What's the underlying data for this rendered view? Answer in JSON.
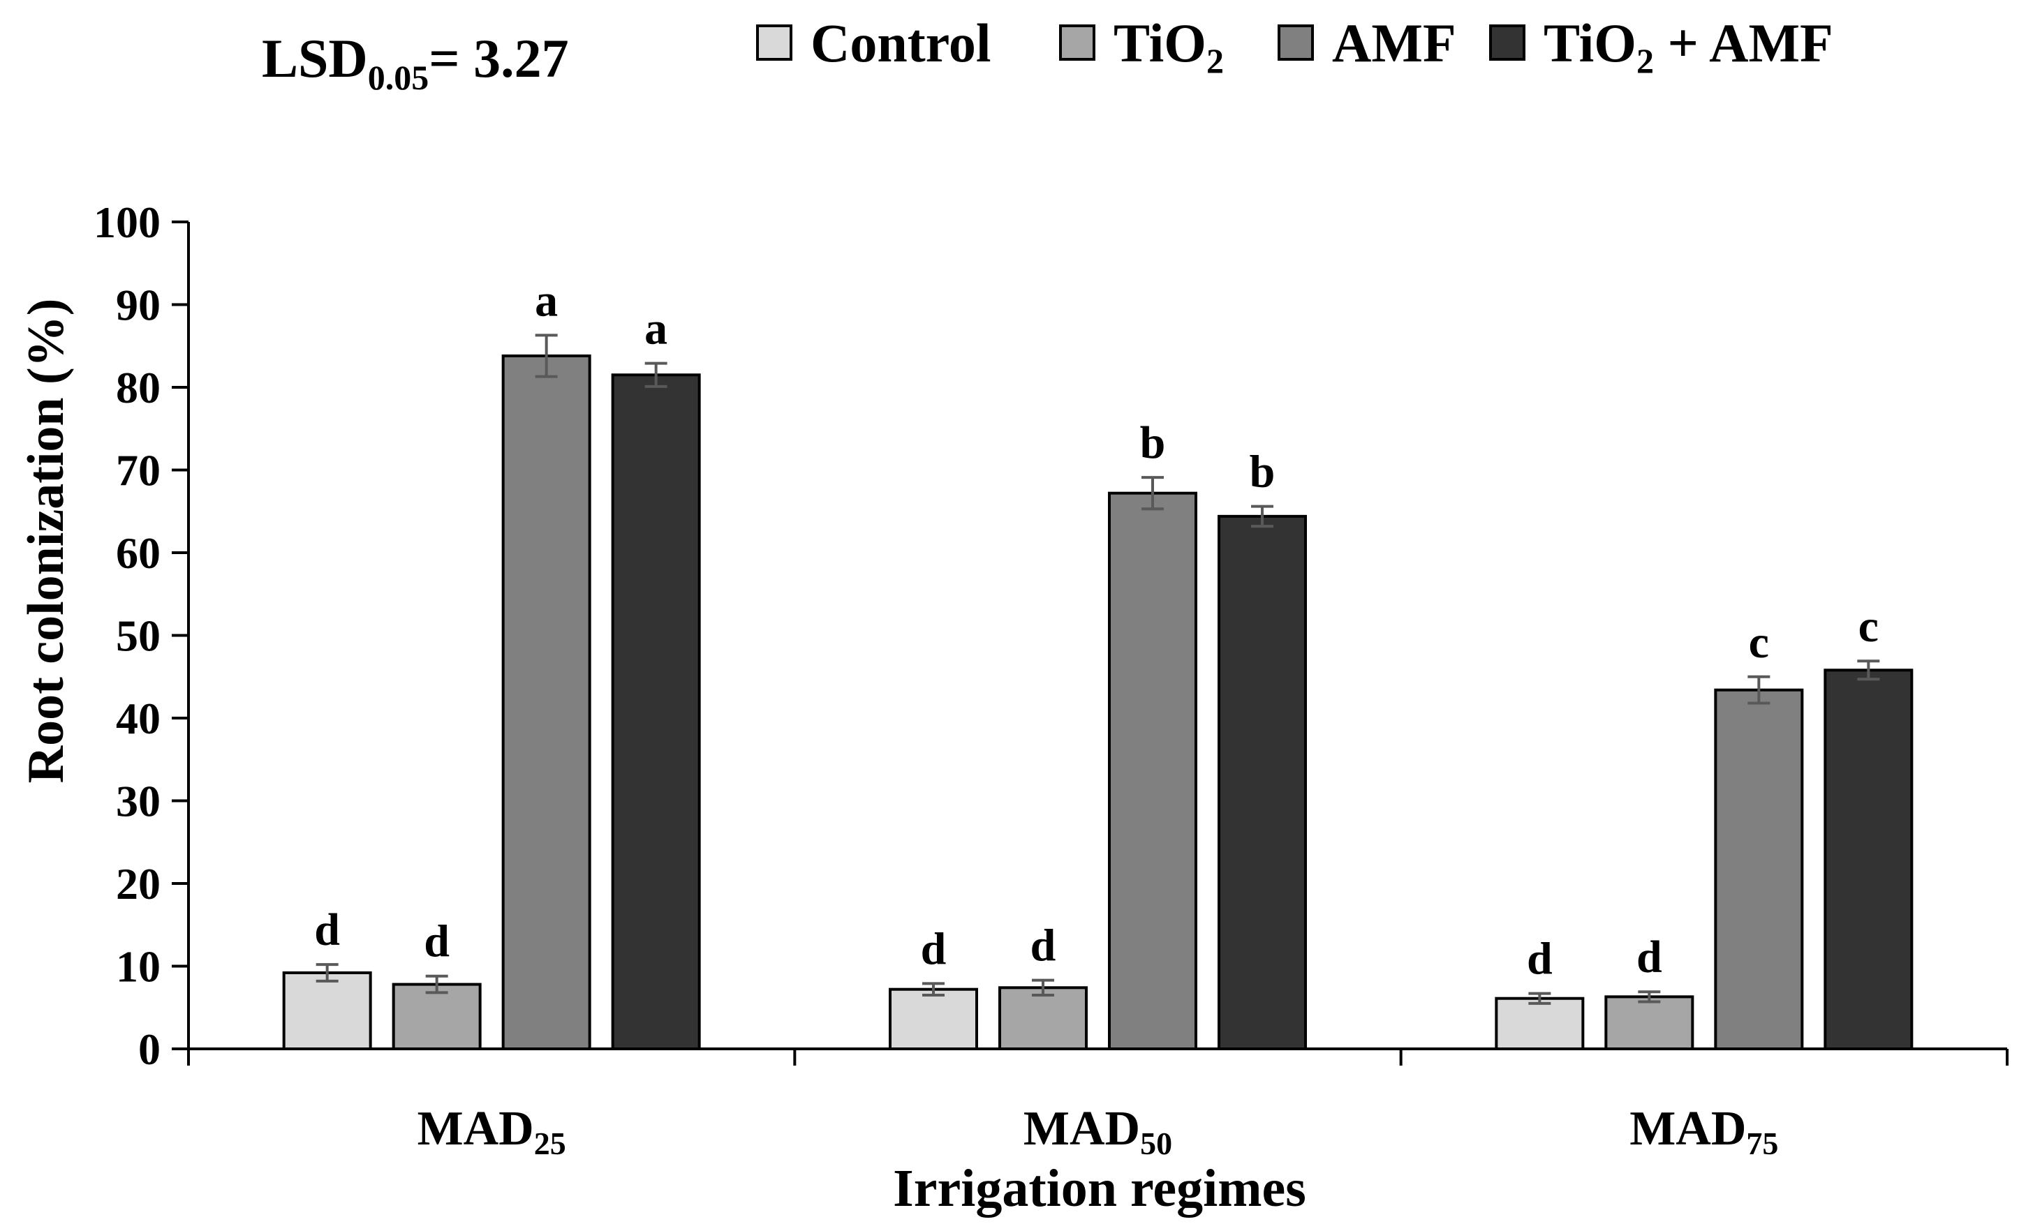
{
  "chart_data": {
    "type": "bar",
    "title": "",
    "annotation": {
      "lsd_prefix": "LSD",
      "lsd_subscript": "0.05",
      "lsd_value": "= 3.27"
    },
    "xlabel": "Irrigation regimes",
    "ylabel": "Root colonization (%)",
    "ylim": [
      0,
      100
    ],
    "yticks": [
      "0",
      "10",
      "20",
      "30",
      "40",
      "50",
      "60",
      "70",
      "80",
      "90",
      "100"
    ],
    "categories": [
      {
        "base": "MAD",
        "sub": "25"
      },
      {
        "base": "MAD",
        "sub": "50"
      },
      {
        "base": "MAD",
        "sub": "75"
      }
    ],
    "legend_position": "top-right",
    "series": [
      {
        "name": "Control",
        "legend_base": "Control",
        "legend_sub": "",
        "legend_tail": "",
        "color": "#d9d9d9",
        "values": [
          9.2,
          7.2,
          6.1
        ],
        "errors": [
          1.0,
          0.7,
          0.6
        ],
        "letters": [
          "d",
          "d",
          "d"
        ],
        "letter_colors": [
          "#404040",
          "#404040",
          "#404040"
        ]
      },
      {
        "name": "TiO2",
        "legend_base": "TiO",
        "legend_sub": "2",
        "legend_tail": "",
        "color": "#a6a6a6",
        "values": [
          7.8,
          7.4,
          6.3
        ],
        "errors": [
          1.0,
          0.9,
          0.6
        ],
        "letters": [
          "d",
          "d",
          "d"
        ],
        "letter_colors": [
          "#000000",
          "#000000",
          "#000000"
        ]
      },
      {
        "name": "AMF",
        "legend_base": "AMF",
        "legend_sub": "",
        "legend_tail": "",
        "color": "#808080",
        "values": [
          83.8,
          67.2,
          43.4
        ],
        "errors": [
          2.5,
          1.9,
          1.6
        ],
        "letters": [
          "a",
          "b",
          "c"
        ],
        "letter_colors": [
          "#000000",
          "#000000",
          "#000000"
        ]
      },
      {
        "name": "TiO2 + AMF",
        "legend_base": "TiO",
        "legend_sub": "2",
        "legend_tail": " + AMF",
        "color": "#333333",
        "values": [
          81.5,
          64.4,
          45.8
        ],
        "errors": [
          1.4,
          1.2,
          1.1
        ],
        "letters": [
          "a",
          "b",
          "c"
        ],
        "letter_colors": [
          "#404040",
          "#404040",
          "#404040"
        ]
      }
    ]
  }
}
